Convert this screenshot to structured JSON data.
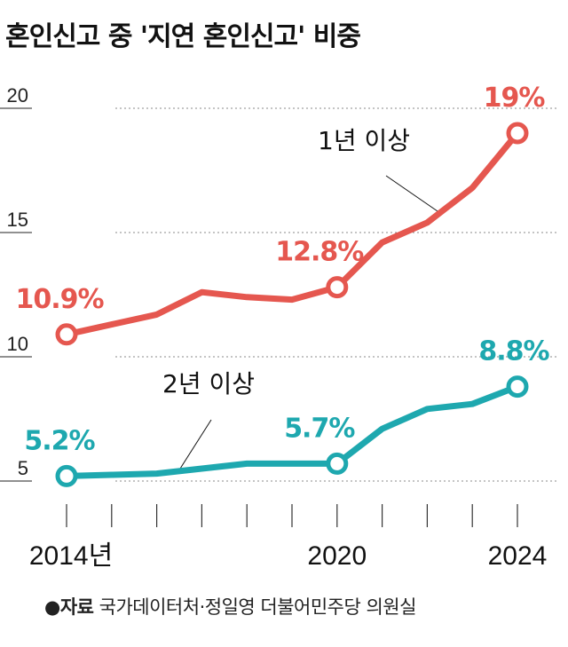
{
  "title": "혼인신고 중 '지연 혼인신고' 비중",
  "source": {
    "bullet": "●",
    "label": "자료",
    "text": "국가데이터처·정일영 더불어민주당 의원실"
  },
  "colors": {
    "series1": "#e5574f",
    "series2": "#1ea8af",
    "grid": "#888888"
  },
  "chart_data": {
    "type": "line",
    "title": "혼인신고 중 '지연 혼인신고' 비중",
    "x": [
      2014,
      2015,
      2016,
      2017,
      2018,
      2019,
      2020,
      2021,
      2022,
      2023,
      2024
    ],
    "x_tick_labels": [
      {
        "x": 2014,
        "label": "2014년"
      },
      {
        "x": 2020,
        "label": "2020"
      },
      {
        "x": 2024,
        "label": "2024"
      }
    ],
    "y_ticks": [
      5,
      10,
      15,
      20
    ],
    "ylim": [
      4,
      21
    ],
    "grid": "horizontal dotted",
    "series": [
      {
        "name": "1년 이상",
        "values": [
          10.9,
          11.3,
          11.7,
          12.6,
          12.4,
          12.3,
          12.8,
          14.6,
          15.4,
          16.8,
          19
        ],
        "labels": [
          {
            "x": 2014,
            "text": "10.9%"
          },
          {
            "x": 2020,
            "text": "12.8%"
          },
          {
            "x": 2024,
            "text": "19%"
          }
        ]
      },
      {
        "name": "2년 이상",
        "values": [
          5.2,
          5.25,
          5.3,
          5.5,
          5.7,
          5.7,
          5.7,
          7.1,
          7.9,
          8.1,
          8.8
        ],
        "labels": [
          {
            "x": 2014,
            "text": "5.2%"
          },
          {
            "x": 2020,
            "text": "5.7%"
          },
          {
            "x": 2024,
            "text": "8.8%"
          }
        ]
      }
    ]
  }
}
